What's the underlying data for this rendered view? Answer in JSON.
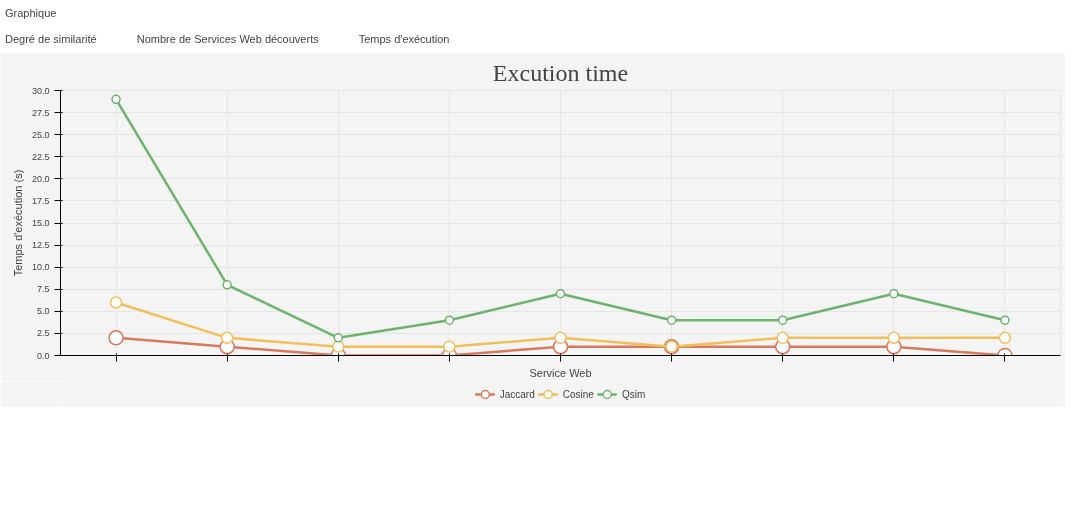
{
  "chart_data": {
    "type": "line",
    "title": "Excution time",
    "xlabel": "Service Web",
    "ylabel": "Temps d'exécution (s)",
    "annotations": [
      "Graphique",
      "Degré de similarité",
      "Nombre de Services Web découverts",
      "Temps d'exécution"
    ],
    "categories": [
      null,
      null,
      null,
      null,
      null,
      null,
      null,
      null,
      null
    ],
    "series": [
      {
        "name": "Jaccard",
        "color": "#d9785a",
        "values": [
          2,
          1,
          0,
          0,
          1,
          1,
          1,
          1,
          0
        ]
      },
      {
        "name": "Cosine",
        "color": "#f0bf5a",
        "values": [
          6,
          2,
          1,
          1,
          2,
          1,
          2,
          2,
          2
        ]
      },
      {
        "name": "Qsim",
        "color": "#6db36d",
        "values": [
          29,
          8,
          2,
          4,
          7,
          4,
          4,
          7,
          4
        ]
      }
    ],
    "ylim": [
      0,
      30
    ],
    "yticks": [
      {
        "value": 0,
        "label": "0.0"
      },
      {
        "value": 2.5,
        "label": "2.5"
      },
      {
        "value": 5,
        "label": "5.0"
      },
      {
        "value": 7.5,
        "label": "7.5"
      },
      {
        "value": 10,
        "label": "10.0"
      },
      {
        "value": 12.5,
        "label": "12.5"
      },
      {
        "value": 15,
        "label": "15.0"
      },
      {
        "value": 17.5,
        "label": "17.5"
      },
      {
        "value": 20,
        "label": "20.0"
      },
      {
        "value": 22.5,
        "label": "22.5"
      },
      {
        "value": 25,
        "label": "25.0"
      },
      {
        "value": 27.5,
        "label": "27.5"
      },
      {
        "value": 30,
        "label": "30.0"
      }
    ],
    "grid": true,
    "legend": "bottom",
    "marker": "circle",
    "line_style": "solid"
  }
}
